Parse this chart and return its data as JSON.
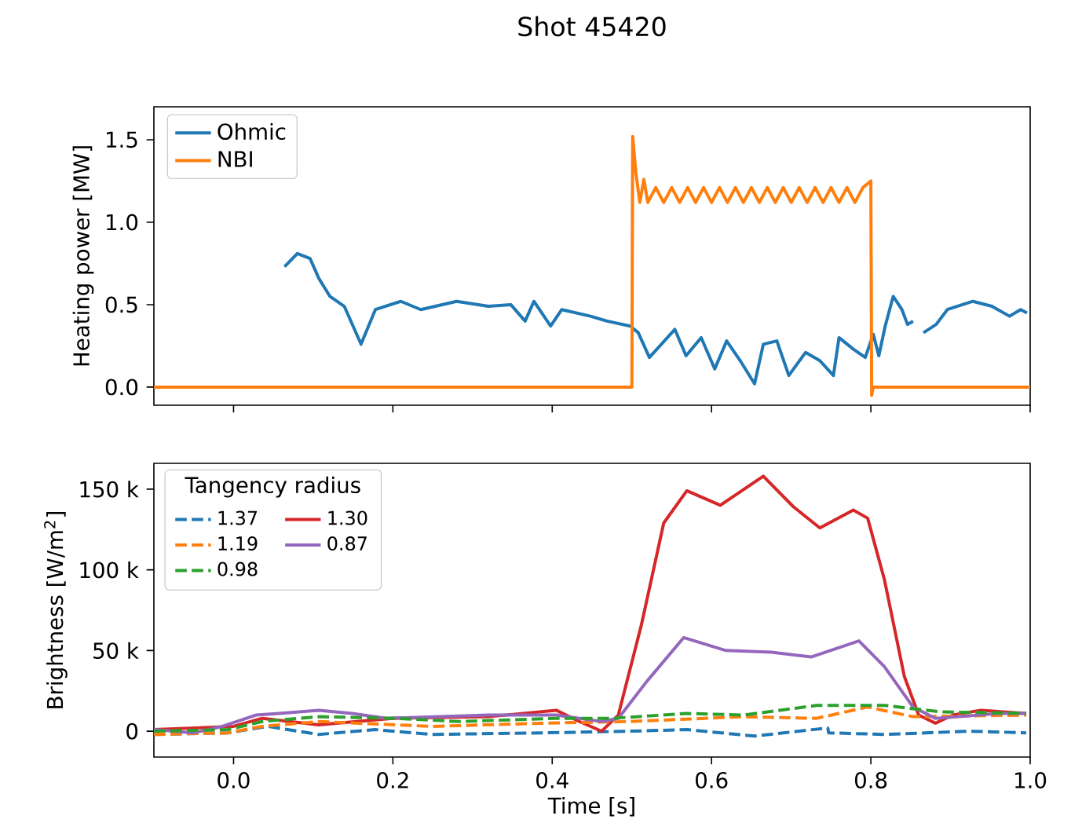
{
  "chart_data": [
    {
      "type": "line",
      "title": "Shot 45420",
      "ylabel": "Heating power [MW]",
      "xlim": [
        -0.1,
        1.0
      ],
      "ylim": [
        -0.11,
        1.7
      ],
      "xticks": [
        0,
        0.2,
        0.4,
        0.6,
        0.8,
        1.0
      ],
      "yticks": [
        {
          "value": 0,
          "label": "0.0"
        },
        {
          "value": 0.5,
          "label": "0.5"
        },
        {
          "value": 1.0,
          "label": "1.0"
        },
        {
          "value": 1.5,
          "label": "1.5"
        }
      ],
      "tick_labels": "y",
      "legend": "top left",
      "line_style": "solid",
      "series": [
        {
          "name": "Ohmic",
          "color": "#1f77b4",
          "x": [
            0.064,
            0.08,
            0.096,
            0.107,
            0.121,
            0.139,
            0.16,
            0.178,
            0.21,
            0.235,
            0.28,
            0.32,
            0.348,
            0.366,
            0.377,
            0.398,
            0.412,
            0.448,
            0.469,
            0.498,
            0.508,
            0.522,
            0.537,
            0.554,
            0.568,
            0.587,
            0.604,
            0.619,
            0.636,
            0.654,
            0.665,
            0.682,
            0.697,
            0.718,
            0.736,
            0.753,
            0.76,
            0.778,
            0.793,
            0.803,
            0.81,
            0.818,
            0.828,
            0.839,
            0.846,
            0.853,
            0.857,
            0.862,
            0.866,
            0.882,
            0.896,
            0.928,
            0.952,
            0.974,
            0.988,
            0.996
          ],
          "values": [
            0.73,
            0.81,
            0.78,
            0.66,
            0.55,
            0.49,
            0.26,
            0.47,
            0.52,
            0.47,
            0.52,
            0.49,
            0.5,
            0.4,
            0.52,
            0.37,
            0.47,
            0.43,
            0.4,
            0.37,
            0.33,
            0.18,
            0.26,
            0.35,
            0.19,
            0.3,
            0.11,
            0.28,
            0.16,
            0.02,
            0.26,
            0.28,
            0.07,
            0.21,
            0.16,
            0.07,
            0.3,
            0.23,
            0.18,
            0.32,
            0.19,
            0.37,
            0.55,
            0.47,
            0.38,
            0.4,
            null,
            null,
            0.33,
            0.38,
            0.47,
            0.52,
            0.49,
            0.43,
            0.47,
            0.45
          ]
        },
        {
          "name": "NBI",
          "color": "#ff7f0e",
          "x": [
            -0.1,
            0.5,
            0.501,
            0.505,
            0.51,
            0.515,
            0.52,
            0.53,
            0.54,
            0.55,
            0.56,
            0.57,
            0.58,
            0.59,
            0.6,
            0.61,
            0.62,
            0.63,
            0.64,
            0.65,
            0.66,
            0.67,
            0.68,
            0.69,
            0.7,
            0.71,
            0.72,
            0.73,
            0.74,
            0.75,
            0.76,
            0.77,
            0.78,
            0.79,
            0.8,
            0.801,
            0.803,
            1.0
          ],
          "values": [
            0,
            0,
            1.52,
            1.3,
            1.12,
            1.26,
            1.12,
            1.21,
            1.12,
            1.21,
            1.12,
            1.21,
            1.12,
            1.21,
            1.12,
            1.21,
            1.12,
            1.21,
            1.12,
            1.21,
            1.12,
            1.21,
            1.12,
            1.21,
            1.12,
            1.21,
            1.12,
            1.21,
            1.12,
            1.21,
            1.12,
            1.21,
            1.12,
            1.21,
            1.25,
            -0.05,
            0,
            0
          ]
        }
      ]
    },
    {
      "type": "line",
      "xlabel": "Time [s]",
      "ylabel": "Brightness [W/m$^{2}$]",
      "legend_title": "Tangency radius",
      "legend": "top left",
      "xlim": [
        -0.1,
        1.0
      ],
      "ylim": [
        -16000,
        166000
      ],
      "xticks": [
        {
          "value": 0,
          "label": "0.0"
        },
        {
          "value": 0.2,
          "label": "0.2"
        },
        {
          "value": 0.4,
          "label": "0.4"
        },
        {
          "value": 0.6,
          "label": "0.6"
        },
        {
          "value": 0.8,
          "label": "0.8"
        },
        {
          "value": 1.0,
          "label": "1.0"
        }
      ],
      "yticks": [
        0,
        {
          "value": 50000,
          "label": "50 k"
        },
        {
          "value": 100000,
          "label": "100 k"
        },
        {
          "value": 150000,
          "label": "150 k"
        }
      ],
      "series": [
        {
          "name": "1.37",
          "color": "#1f77b4",
          "line_style": "dashed",
          "x": [
            -0.1,
            -0.007,
            0.043,
            0.107,
            0.178,
            0.249,
            0.391,
            0.497,
            0.569,
            0.654,
            0.746,
            0.747,
            0.817,
            0.924,
            0.995
          ],
          "values": [
            -2000,
            -1000,
            3000,
            -2000,
            1000,
            -2000,
            -1000,
            0,
            1000,
            -3000,
            2000,
            -1000,
            -2000,
            0,
            -1000
          ]
        },
        {
          "name": "1.19",
          "color": "#ff7f0e",
          "line_style": "dashed",
          "x": [
            -0.1,
            -0.007,
            0.036,
            0.107,
            0.249,
            0.391,
            0.497,
            0.64,
            0.732,
            0.796,
            0.853,
            0.995
          ],
          "values": [
            -2000,
            -1000,
            3000,
            6000,
            3000,
            5000,
            6000,
            9000,
            8000,
            15000,
            9000,
            10000
          ]
        },
        {
          "name": "0.98",
          "color": "#2ca02c",
          "line_style": "dashed",
          "x": [
            -0.1,
            -0.007,
            0.036,
            0.107,
            0.2,
            0.284,
            0.405,
            0.476,
            0.569,
            0.64,
            0.732,
            0.817,
            0.888,
            0.995
          ],
          "values": [
            0,
            1000,
            6000,
            9000,
            8000,
            6000,
            8000,
            8000,
            11000,
            10000,
            16000,
            16000,
            12000,
            11000
          ]
        },
        {
          "name": "1.30",
          "color": "#d62728",
          "line_style": "solid",
          "x": [
            -0.1,
            0.0,
            0.036,
            0.107,
            0.2,
            0.32,
            0.405,
            0.434,
            0.462,
            0.483,
            0.512,
            0.54,
            0.569,
            0.611,
            0.665,
            0.703,
            0.736,
            0.778,
            0.796,
            0.817,
            0.842,
            0.86,
            0.881,
            0.903,
            0.938,
            0.995
          ],
          "values": [
            1000,
            3000,
            8000,
            4000,
            8000,
            9000,
            13000,
            6000,
            0,
            10000,
            66000,
            129000,
            149000,
            140000,
            158000,
            139000,
            126000,
            137000,
            132000,
            94000,
            34000,
            10000,
            5000,
            10000,
            13000,
            11000
          ]
        },
        {
          "name": "0.87",
          "color": "#9467bd",
          "line_style": "solid",
          "x": [
            -0.1,
            -0.05,
            -0.014,
            0.028,
            0.057,
            0.107,
            0.149,
            0.192,
            0.32,
            0.405,
            0.462,
            0.483,
            0.519,
            0.565,
            0.618,
            0.675,
            0.725,
            0.785,
            0.817,
            0.853,
            0.881,
            0.91,
            0.96,
            0.995
          ],
          "values": [
            1000,
            -1000,
            3000,
            10000,
            11000,
            13000,
            11000,
            8000,
            10000,
            10000,
            6000,
            8000,
            31000,
            58000,
            50000,
            49000,
            46000,
            56000,
            40000,
            15000,
            8000,
            9000,
            11000,
            11000
          ]
        }
      ]
    }
  ]
}
